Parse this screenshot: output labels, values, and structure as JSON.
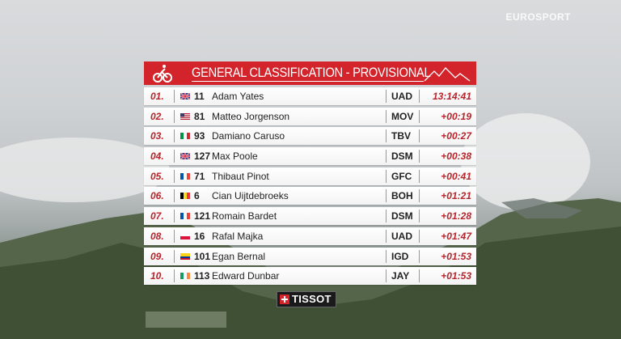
{
  "header": {
    "title": "GENERAL CLASSIFICATION - PROVISIONAL"
  },
  "watermark": {
    "brand": "EUROSPORT",
    "sub": ""
  },
  "sponsor": {
    "name": "TISSOT"
  },
  "standings": [
    {
      "pos": "01.",
      "flag": "gb",
      "number": "11",
      "name": "Adam Yates",
      "team": "UAD",
      "time": "13:14:41"
    },
    {
      "pos": "02.",
      "flag": "us",
      "number": "81",
      "name": "Matteo Jorgenson",
      "team": "MOV",
      "time": "+00:19"
    },
    {
      "pos": "03.",
      "flag": "it",
      "number": "93",
      "name": "Damiano Caruso",
      "team": "TBV",
      "time": "+00:27"
    },
    {
      "pos": "04.",
      "flag": "gb",
      "number": "127",
      "name": "Max Poole",
      "team": "DSM",
      "time": "+00:38"
    },
    {
      "pos": "05.",
      "flag": "fr",
      "number": "71",
      "name": "Thibaut Pinot",
      "team": "GFC",
      "time": "+00:41"
    },
    {
      "pos": "06.",
      "flag": "be",
      "number": "6",
      "name": "Cian Uijtdebroeks",
      "team": "BOH",
      "time": "+01:21"
    },
    {
      "pos": "07.",
      "flag": "fr",
      "number": "121",
      "name": "Romain Bardet",
      "team": "DSM",
      "time": "+01:28"
    },
    {
      "pos": "08.",
      "flag": "pl",
      "number": "16",
      "name": "Rafal Majka",
      "team": "UAD",
      "time": "+01:47"
    },
    {
      "pos": "09.",
      "flag": "co",
      "number": "101",
      "name": "Egan Bernal",
      "team": "IGD",
      "time": "+01:53"
    },
    {
      "pos": "10.",
      "flag": "ie",
      "number": "113",
      "name": "Edward Dunbar",
      "team": "JAY",
      "time": "+01:53"
    }
  ]
}
